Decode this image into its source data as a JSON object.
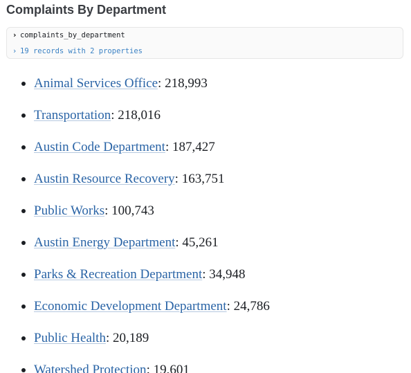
{
  "title": "Complaints By Department",
  "inspector": {
    "chevron_expand": "›",
    "variable_name": "complaints_by_department",
    "summary": "19 records with 2 properties"
  },
  "departments": [
    {
      "name": "Animal Services Office",
      "sep": ": ",
      "count": "218,993"
    },
    {
      "name": "Transportation",
      "sep": ": ",
      "count": "218,016"
    },
    {
      "name": "Austin Code Department",
      "sep": ": ",
      "count": "187,427"
    },
    {
      "name": "Austin Resource Recovery",
      "sep": ": ",
      "count": "163,751"
    },
    {
      "name": "Public Works",
      "sep": ": ",
      "count": "100,743"
    },
    {
      "name": "Austin Energy Department",
      "sep": ": ",
      "count": "45,261"
    },
    {
      "name": "Parks & Recreation Department",
      "sep": ": ",
      "count": "34,948"
    },
    {
      "name": "Economic Development Department",
      "sep": ": ",
      "count": "24,786"
    },
    {
      "name": "Public Health",
      "sep": ": ",
      "count": "20,189"
    },
    {
      "name": "Watershed Protection",
      "sep": ": ",
      "count": "19,601"
    }
  ],
  "colors": {
    "link": "#2a64a6",
    "summary": "#3b82c4",
    "text": "#1b1e23",
    "title": "#3a3d42",
    "inspector_bg": "#fafafa",
    "inspector_border": "#e6e6e6"
  }
}
